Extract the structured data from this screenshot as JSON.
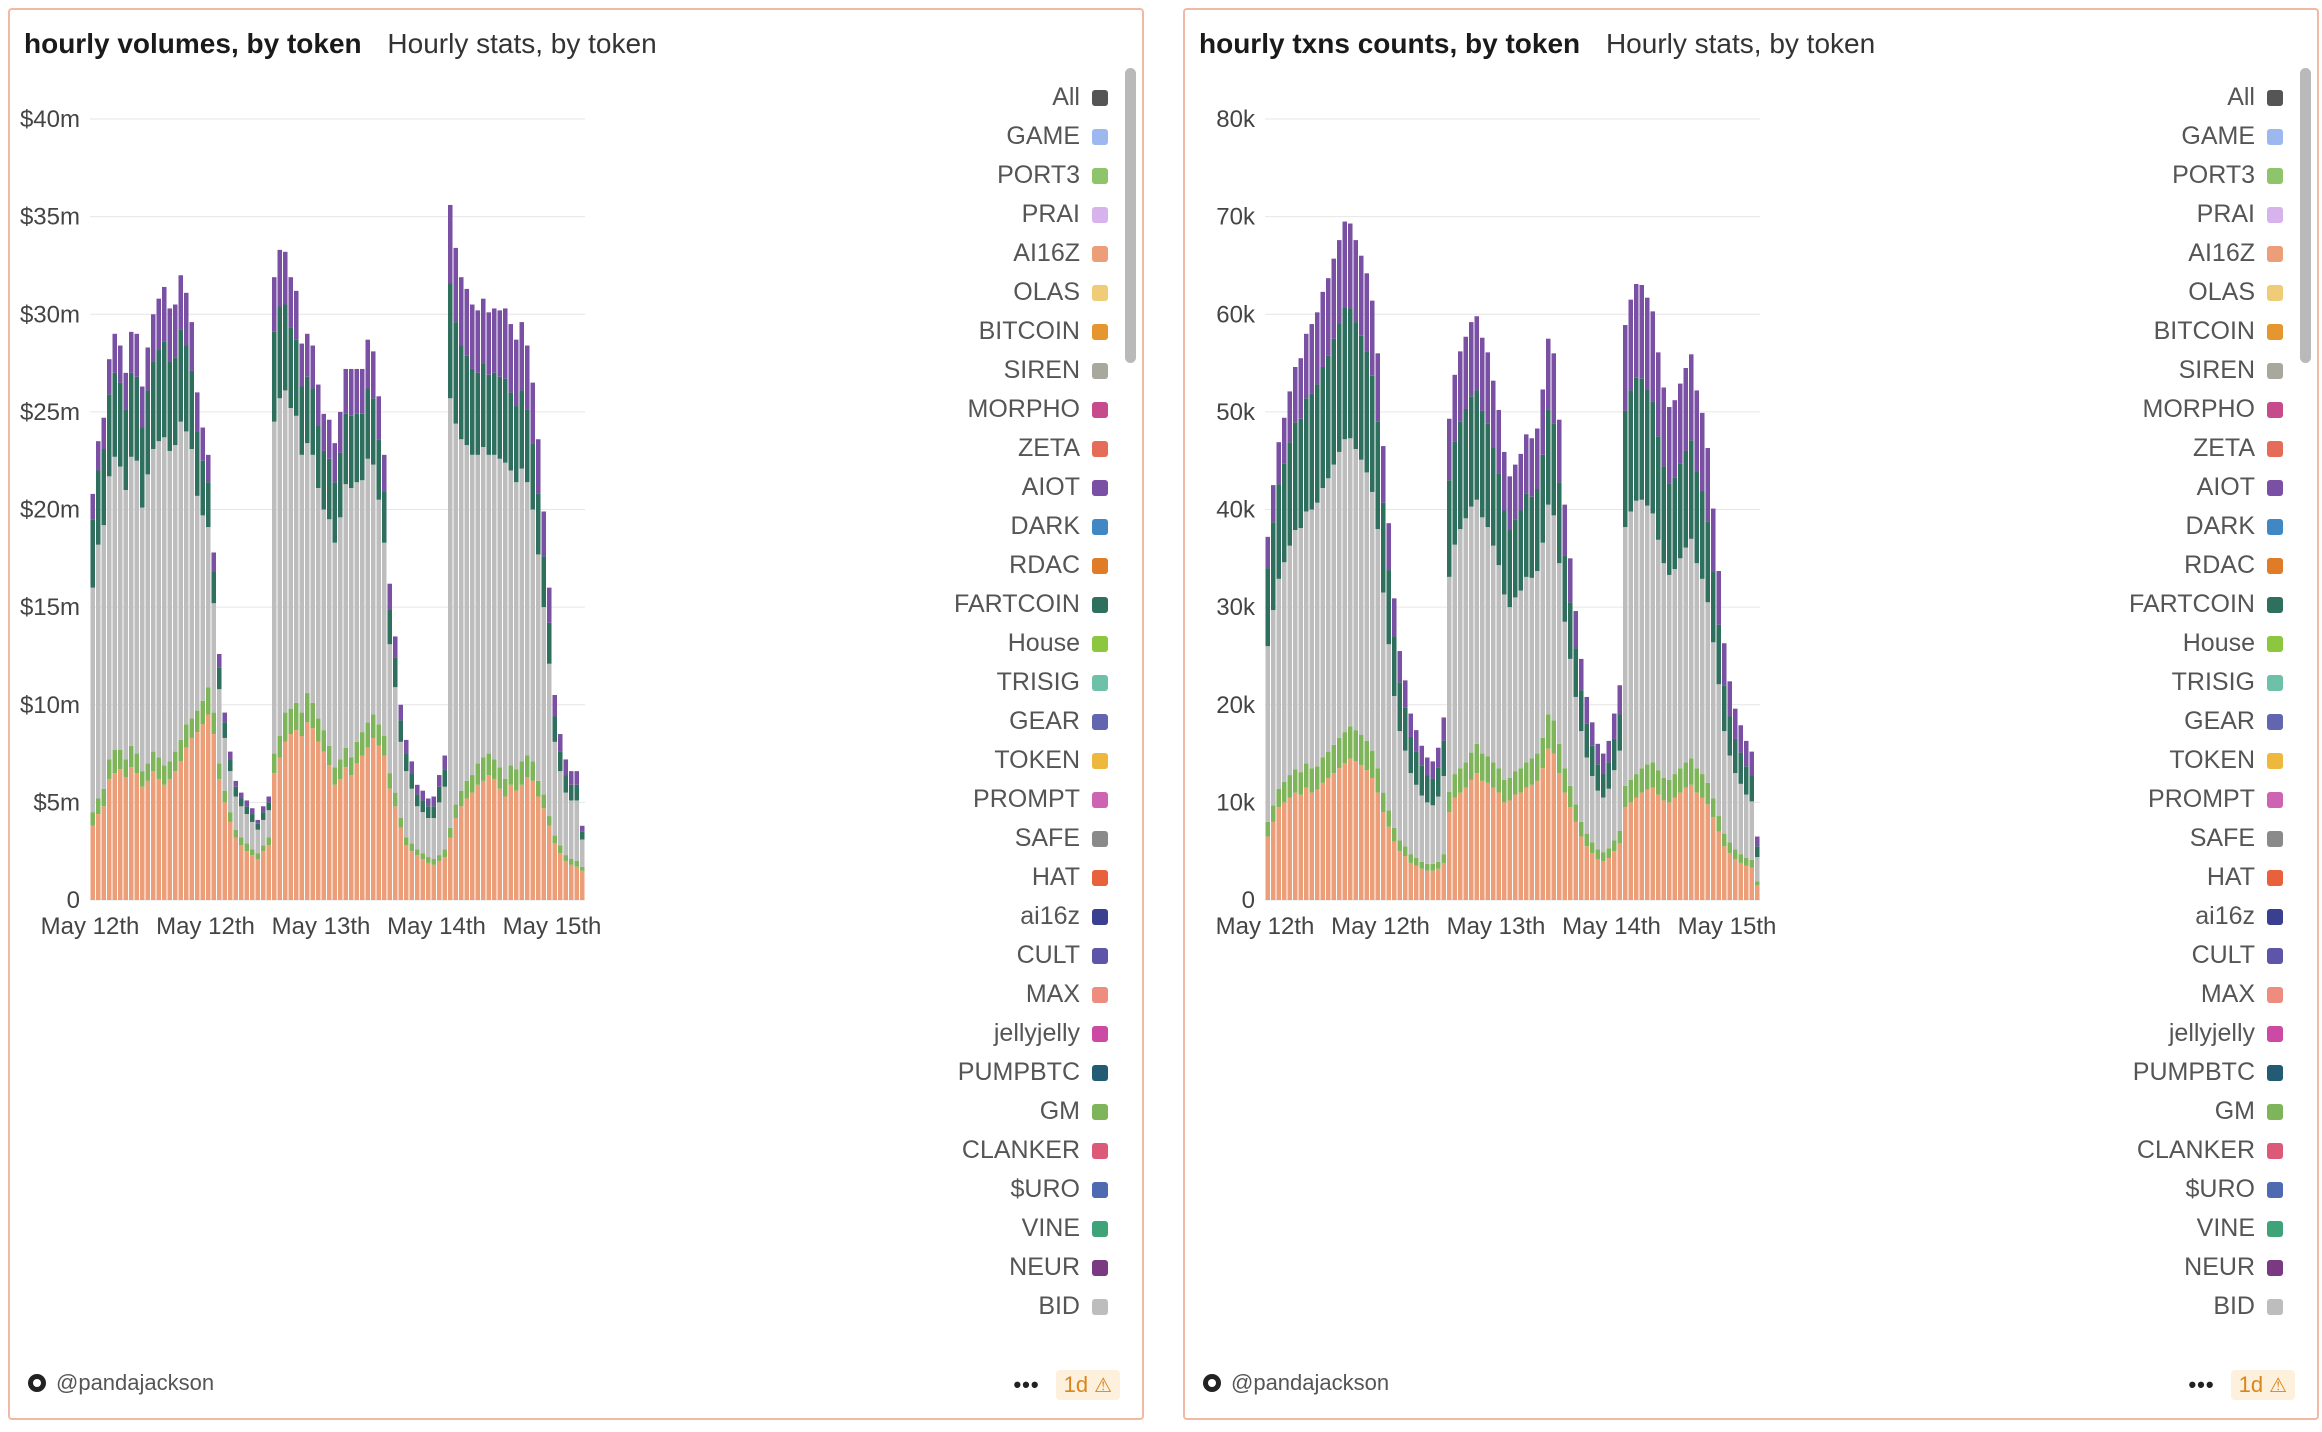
{
  "left_panel": {
    "title": "hourly volumes, by token",
    "subtitle": "Hourly stats, by token",
    "author": "@pandajackson",
    "more_label": "•••",
    "badge_label": "1d",
    "warning_icon": "warning-icon"
  },
  "right_panel": {
    "title": "hourly txns counts, by token",
    "subtitle": "Hourly stats, by token",
    "author": "@pandajackson",
    "more_label": "•••",
    "badge_label": "1d",
    "warning_icon": "warning-icon"
  },
  "legend": [
    {
      "name": "All",
      "color": "#555555"
    },
    {
      "name": "GAME",
      "color": "#9db8ee"
    },
    {
      "name": "PORT3",
      "color": "#8ec46a"
    },
    {
      "name": "PRAI",
      "color": "#d7b3ee"
    },
    {
      "name": "AI16Z",
      "color": "#ec9e78"
    },
    {
      "name": "OLAS",
      "color": "#f0cc78"
    },
    {
      "name": "BITCOIN",
      "color": "#e6962e"
    },
    {
      "name": "SIREN",
      "color": "#a8a89c"
    },
    {
      "name": "MORPHO",
      "color": "#c64b8c"
    },
    {
      "name": "ZETA",
      "color": "#e66c5a"
    },
    {
      "name": "AIOT",
      "color": "#7a50a4"
    },
    {
      "name": "DARK",
      "color": "#3f88c5"
    },
    {
      "name": "RDAC",
      "color": "#e07b27"
    },
    {
      "name": "FARTCOIN",
      "color": "#2f6f5e"
    },
    {
      "name": "House",
      "color": "#8dc63f"
    },
    {
      "name": "TRISIG",
      "color": "#6fc0a8"
    },
    {
      "name": "GEAR",
      "color": "#6266b0"
    },
    {
      "name": "TOKEN",
      "color": "#edb83b"
    },
    {
      "name": "PROMPT",
      "color": "#cf63b3"
    },
    {
      "name": "SAFE",
      "color": "#8a8a8a"
    },
    {
      "name": "HAT",
      "color": "#e8613c"
    },
    {
      "name": "ai16z",
      "color": "#3a3f8f"
    },
    {
      "name": "CULT",
      "color": "#5d55a8"
    },
    {
      "name": "MAX",
      "color": "#ef8c80"
    },
    {
      "name": "jellyjelly",
      "color": "#cc4aa6"
    },
    {
      "name": "PUMPBTC",
      "color": "#235b73"
    },
    {
      "name": "GM",
      "color": "#7fb55a"
    },
    {
      "name": "CLANKER",
      "color": "#dc5a78"
    },
    {
      "name": "$URO",
      "color": "#4e6ab0"
    },
    {
      "name": "VINE",
      "color": "#3fa37a"
    },
    {
      "name": "NEUR",
      "color": "#7a3a82"
    },
    {
      "name": "BID",
      "color": "#bdbdbd"
    }
  ],
  "chart_data": [
    {
      "type": "bar",
      "stacked": true,
      "title": "hourly volumes, by token",
      "x_tick_labels": [
        "May 12th",
        "May 12th",
        "May 13th",
        "May 14th",
        "May 15th"
      ],
      "y_tick_labels": [
        "0",
        "$5m",
        "$10m",
        "$15m",
        "$20m",
        "$25m",
        "$30m",
        "$35m",
        "$40m"
      ],
      "ylim": [
        0,
        42000000
      ],
      "grid": true,
      "legend_position": "right",
      "series_stack_order": [
        "AI16Z",
        "GM",
        "BID",
        "FARTCOIN",
        "AIOT"
      ],
      "hourly": {
        "AI16Z": [
          3800000,
          4400000,
          4800000,
          6200000,
          6500000,
          6700000,
          6300000,
          6800000,
          6500000,
          5800000,
          6100000,
          6600000,
          6200000,
          5900000,
          6200000,
          6600000,
          7100000,
          7800000,
          8300000,
          8600000,
          9000000,
          9500000,
          8500000,
          6200000,
          5000000,
          4000000,
          3200000,
          2800000,
          2500000,
          2300000,
          2100000,
          2500000,
          2800000,
          6500000,
          7300000,
          8100000,
          8500000,
          8700000,
          8400000,
          9100000,
          8800000,
          8100000,
          7600000,
          6900000,
          5900000,
          6200000,
          6800000,
          6400000,
          7000000,
          7400000,
          7800000,
          8300000,
          7900000,
          7400000,
          5700000,
          4800000,
          3700000,
          2800000,
          2500000,
          2300000,
          2100000,
          1900000,
          1800000,
          2000000,
          2200000,
          3200000,
          4200000,
          4800000,
          5200000,
          5500000,
          5900000,
          6100000,
          6400000,
          6200000,
          5700000,
          5300000,
          5900000,
          5600000,
          5900000,
          6300000,
          6100000,
          5300000,
          4700000,
          3800000,
          2900000,
          2400000,
          2000000,
          1800000,
          1700000,
          1500000
        ],
        "GM": [
          700000,
          800000,
          900000,
          1000000,
          1200000,
          1000000,
          900000,
          1100000,
          1000000,
          800000,
          900000,
          1000000,
          1100000,
          1000000,
          900000,
          1000000,
          1100000,
          1200000,
          1000000,
          1100000,
          1200000,
          1400000,
          1100000,
          800000,
          600000,
          500000,
          400000,
          400000,
          400000,
          300000,
          300000,
          300000,
          400000,
          1000000,
          1100000,
          1500000,
          1300000,
          1400000,
          1200000,
          1500000,
          1300000,
          1200000,
          1100000,
          1000000,
          900000,
          1000000,
          1000000,
          900000,
          1100000,
          1200000,
          1300000,
          1200000,
          1100000,
          1000000,
          800000,
          700000,
          500000,
          400000,
          400000,
          300000,
          300000,
          300000,
          300000,
          300000,
          400000,
          500000,
          700000,
          800000,
          900000,
          900000,
          1100000,
          1200000,
          1100000,
          1000000,
          1100000,
          900000,
          1000000,
          1100000,
          1200000,
          1100000,
          1000000,
          800000,
          700000,
          500000,
          400000,
          400000,
          300000,
          300000,
          300000,
          200000
        ],
        "BID": [
          11500000,
          13000000,
          13500000,
          14500000,
          15000000,
          14500000,
          13800000,
          14800000,
          15000000,
          13500000,
          14800000,
          15500000,
          16200000,
          16800000,
          15900000,
          15700000,
          16300000,
          15000000,
          13800000,
          11000000,
          9500000,
          8200000,
          5600000,
          3800000,
          2700000,
          2100000,
          1700000,
          1600000,
          1500000,
          1400000,
          1200000,
          1300000,
          1400000,
          17000000,
          17300000,
          16500000,
          15400000,
          14700000,
          13200000,
          12800000,
          12700000,
          11800000,
          11300000,
          11600000,
          11500000,
          12400000,
          13500000,
          13800000,
          13300000,
          12900000,
          13500000,
          12800000,
          11500000,
          9900000,
          6600000,
          5400000,
          3900000,
          3400000,
          2800000,
          2200000,
          2100000,
          2000000,
          2100000,
          2700000,
          3200000,
          22000000,
          19500000,
          18000000,
          17200000,
          16400000,
          15800000,
          15900000,
          15300000,
          15600000,
          15800000,
          16200000,
          15100000,
          14700000,
          15000000,
          14000000,
          12900000,
          11600000,
          9600000,
          7800000,
          4800000,
          3800000,
          3200000,
          3000000,
          3100000,
          1400000
        ],
        "FARTCOIN": [
          3500000,
          3800000,
          3900000,
          4200000,
          4300000,
          4300000,
          4100000,
          4300000,
          4300000,
          4100000,
          4300000,
          4500000,
          4700000,
          4900000,
          4600000,
          4500000,
          4700000,
          4400000,
          4000000,
          3300000,
          2800000,
          2300000,
          1600000,
          1100000,
          800000,
          600000,
          500000,
          400000,
          400000,
          400000,
          300000,
          400000,
          400000,
          4600000,
          4700000,
          4400000,
          4100000,
          3900000,
          3500000,
          3400000,
          3400000,
          3200000,
          3000000,
          3100000,
          3100000,
          3300000,
          3600000,
          3700000,
          3500000,
          3400000,
          3600000,
          3400000,
          3100000,
          2600000,
          1800000,
          1500000,
          1100000,
          900000,
          800000,
          600000,
          600000,
          600000,
          600000,
          800000,
          900000,
          5900000,
          5200000,
          4800000,
          4600000,
          4400000,
          4200000,
          4300000,
          4100000,
          4200000,
          4200000,
          4300000,
          4000000,
          3900000,
          4000000,
          3700000,
          3400000,
          3100000,
          2600000,
          2100000,
          1300000,
          1000000,
          900000,
          800000,
          800000,
          400000
        ],
        "AIOT": [
          1300000,
          1500000,
          1600000,
          1800000,
          2000000,
          1900000,
          1900000,
          2100000,
          2200000,
          2100000,
          2200000,
          2400000,
          2600000,
          2800000,
          2700000,
          2700000,
          2800000,
          2700000,
          2500000,
          2000000,
          1700000,
          1400000,
          1000000,
          700000,
          500000,
          400000,
          300000,
          300000,
          300000,
          300000,
          200000,
          300000,
          300000,
          2800000,
          2900000,
          2700000,
          2600000,
          2500000,
          2200000,
          2200000,
          2200000,
          2100000,
          1900000,
          2000000,
          2000000,
          2100000,
          2300000,
          2400000,
          2300000,
          2300000,
          2500000,
          2400000,
          2200000,
          1900000,
          1300000,
          1100000,
          800000,
          700000,
          600000,
          500000,
          500000,
          400000,
          500000,
          600000,
          700000,
          4000000,
          3800000,
          3500000,
          3400000,
          3300000,
          3200000,
          3300000,
          3200000,
          3300000,
          3400000,
          3600000,
          3500000,
          3400000,
          3500000,
          3300000,
          3100000,
          2800000,
          2300000,
          1800000,
          1100000,
          900000,
          800000,
          700000,
          700000,
          300000
        ]
      }
    },
    {
      "type": "bar",
      "stacked": true,
      "title": "hourly txns counts, by token",
      "x_tick_labels": [
        "May 12th",
        "May 12th",
        "May 13th",
        "May 14th",
        "May 15th"
      ],
      "y_tick_labels": [
        "0",
        "10k",
        "20k",
        "30k",
        "40k",
        "50k",
        "60k",
        "70k",
        "80k"
      ],
      "ylim": [
        0,
        84000
      ],
      "grid": true,
      "legend_position": "right",
      "series_stack_order": [
        "AI16Z",
        "GM",
        "BID",
        "FARTCOIN",
        "AIOT"
      ],
      "hourly": {
        "AI16Z": [
          6500,
          8000,
          9500,
          10000,
          10500,
          11000,
          10800,
          11500,
          11000,
          11300,
          12000,
          12500,
          13000,
          13500,
          14000,
          14500,
          14200,
          13800,
          13300,
          12500,
          11000,
          9000,
          7500,
          6000,
          5000,
          4500,
          3800,
          3500,
          3200,
          3000,
          3000,
          3200,
          3800,
          9000,
          10500,
          11000,
          11500,
          12300,
          13000,
          12200,
          12000,
          11500,
          11000,
          10000,
          10200,
          10800,
          11000,
          11500,
          11800,
          12200,
          13500,
          15500,
          15000,
          13000,
          11000,
          9500,
          8000,
          6500,
          5500,
          4800,
          4200,
          4000,
          4300,
          5000,
          5800,
          9500,
          10000,
          10500,
          11000,
          11300,
          11500,
          10800,
          10200,
          10000,
          10500,
          11000,
          11500,
          11800,
          11000,
          10500,
          9800,
          8500,
          7000,
          5500,
          4800,
          4200,
          3800,
          3500,
          3300,
          1500
        ],
        "GM": [
          1500,
          1700,
          1900,
          2100,
          2300,
          2400,
          2300,
          2500,
          2500,
          2400,
          2600,
          2700,
          2900,
          3100,
          3200,
          3300,
          3200,
          3100,
          3000,
          2800,
          2500,
          2000,
          1700,
          1400,
          1100,
          1000,
          900,
          800,
          700,
          700,
          700,
          700,
          900,
          2100,
          2400,
          2500,
          2600,
          2800,
          3000,
          2800,
          2700,
          2600,
          2500,
          2300,
          2300,
          2400,
          2500,
          2600,
          2700,
          2800,
          3100,
          3500,
          3400,
          3000,
          2500,
          2200,
          1800,
          1500,
          1300,
          1100,
          1000,
          900,
          1000,
          1100,
          1300,
          2200,
          2300,
          2400,
          2500,
          2600,
          2600,
          2500,
          2300,
          2300,
          2400,
          2500,
          2600,
          2700,
          2500,
          2400,
          2200,
          1900,
          1600,
          1300,
          1100,
          1000,
          900,
          800,
          800,
          400
        ],
        "BID": [
          18000,
          20000,
          21500,
          22500,
          23500,
          24500,
          25000,
          25800,
          26500,
          27000,
          27600,
          28000,
          28700,
          29300,
          30000,
          29500,
          28800,
          28200,
          27500,
          26500,
          24500,
          20500,
          17000,
          13500,
          11200,
          9800,
          8300,
          7500,
          6800,
          6300,
          6000,
          6700,
          8000,
          22000,
          23500,
          24500,
          25000,
          25200,
          25000,
          24200,
          23500,
          22200,
          20800,
          19000,
          17500,
          17800,
          18200,
          19000,
          18500,
          18700,
          20000,
          21500,
          21000,
          18500,
          15000,
          13000,
          11000,
          9300,
          7800,
          6800,
          6000,
          5600,
          6100,
          7200,
          8200,
          26500,
          27500,
          28000,
          27500,
          26500,
          25500,
          23600,
          22000,
          21000,
          21000,
          21500,
          22000,
          22500,
          21000,
          20000,
          18500,
          16000,
          13500,
          10500,
          8900,
          7800,
          7200,
          6500,
          6000,
          2500
        ],
        "FARTCOIN": [
          8000,
          9000,
          9700,
          10100,
          10600,
          11000,
          11200,
          11600,
          11900,
          12100,
          12400,
          12600,
          12900,
          13200,
          13500,
          13300,
          13000,
          12700,
          12400,
          11900,
          11000,
          9200,
          7600,
          6100,
          5000,
          4400,
          3700,
          3400,
          3100,
          2800,
          2700,
          3000,
          3600,
          9900,
          10600,
          11000,
          11200,
          11300,
          11200,
          10900,
          10600,
          10000,
          9400,
          8600,
          7900,
          8000,
          8200,
          8500,
          8300,
          8400,
          9000,
          9700,
          9400,
          8300,
          6800,
          5800,
          5000,
          4200,
          3500,
          3100,
          2700,
          2500,
          2700,
          3200,
          3700,
          11900,
          12400,
          12600,
          12400,
          11900,
          11500,
          10600,
          9900,
          9400,
          9400,
          9700,
          9900,
          10100,
          9400,
          9000,
          8300,
          7200,
          6100,
          4700,
          4000,
          3500,
          3200,
          2900,
          2700,
          1100
        ],
        "AIOT": [
          3200,
          3800,
          4300,
          4700,
          5200,
          5700,
          6200,
          6600,
          7100,
          7400,
          7700,
          7900,
          8200,
          8500,
          8800,
          8700,
          8400,
          8200,
          8000,
          7700,
          7000,
          5800,
          4800,
          3900,
          3200,
          2800,
          2400,
          2200,
          2000,
          1800,
          1800,
          2000,
          2400,
          6300,
          6800,
          7200,
          7400,
          7600,
          7600,
          7500,
          7300,
          6900,
          6500,
          6000,
          5500,
          5600,
          5800,
          6100,
          6000,
          6200,
          6700,
          7300,
          7200,
          6400,
          5200,
          4500,
          3800,
          3200,
          2700,
          2400,
          2100,
          2000,
          2200,
          2600,
          3000,
          8800,
          9300,
          9600,
          9600,
          9400,
          9200,
          8600,
          8100,
          7800,
          7900,
          8200,
          8500,
          8800,
          8300,
          8000,
          7500,
          6500,
          5500,
          4300,
          3600,
          3100,
          2800,
          2600,
          2400,
          1000
        ]
      }
    }
  ]
}
